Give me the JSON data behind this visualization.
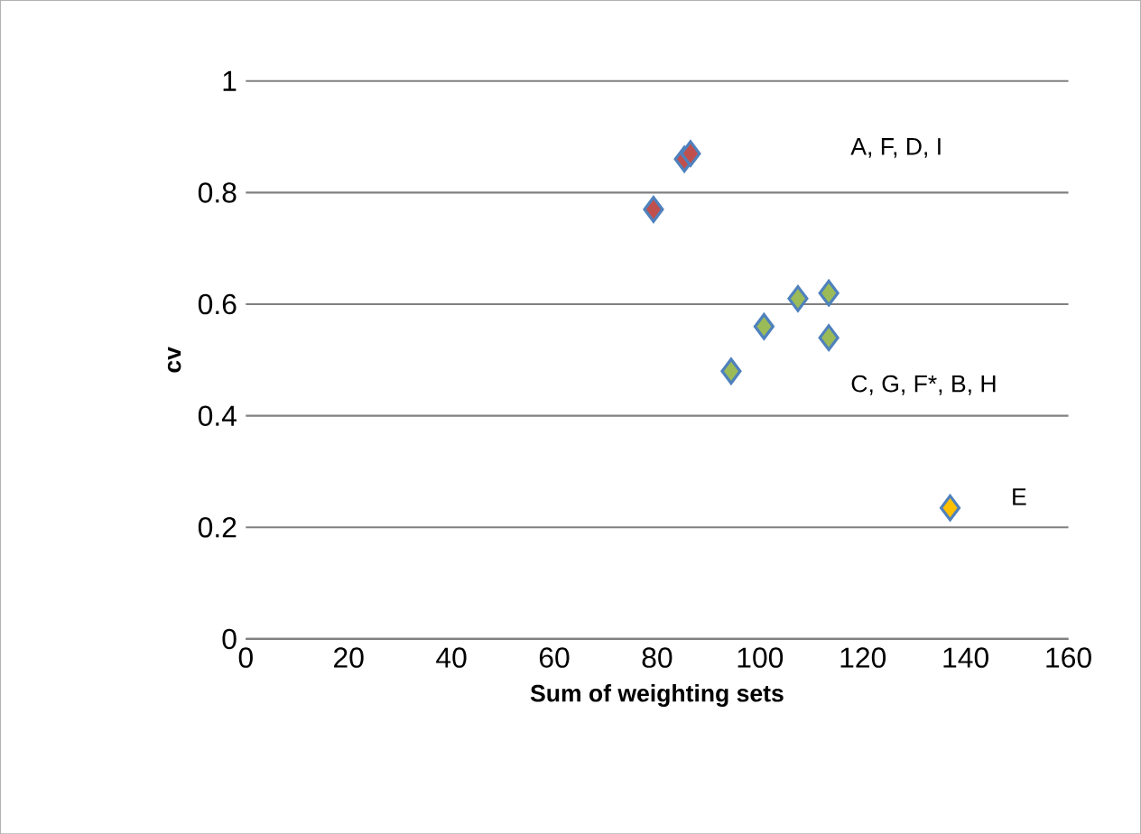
{
  "chart_data": {
    "type": "scatter",
    "xlabel": "Sum of weighting sets",
    "ylabel": "cv",
    "series": [
      {
        "color": "#c0504d",
        "x": [
          79.3,
          85.3,
          86.5
        ],
        "values": [
          0.77,
          0.86,
          0.87
        ]
      },
      {
        "color": "#9bbb59",
        "x": [
          94.4,
          100.8,
          107.4,
          113.4,
          113.4
        ],
        "values": [
          0.48,
          0.56,
          0.61,
          0.62,
          0.54
        ]
      },
      {
        "color": "#ffc000",
        "x": [
          137
        ],
        "values": [
          0.235
        ]
      }
    ],
    "xlim": [
      0,
      160
    ],
    "xticks": [
      0,
      20,
      40,
      60,
      80,
      100,
      120,
      140,
      160
    ],
    "ylim": [
      0,
      1
    ],
    "yticks": [
      0,
      0.2,
      0.4,
      0.6,
      0.8,
      1
    ],
    "grid": "y",
    "marker": "diamond",
    "annotations": [
      "A, F, D, I",
      "C, G, F*, B, H",
      "E"
    ]
  }
}
